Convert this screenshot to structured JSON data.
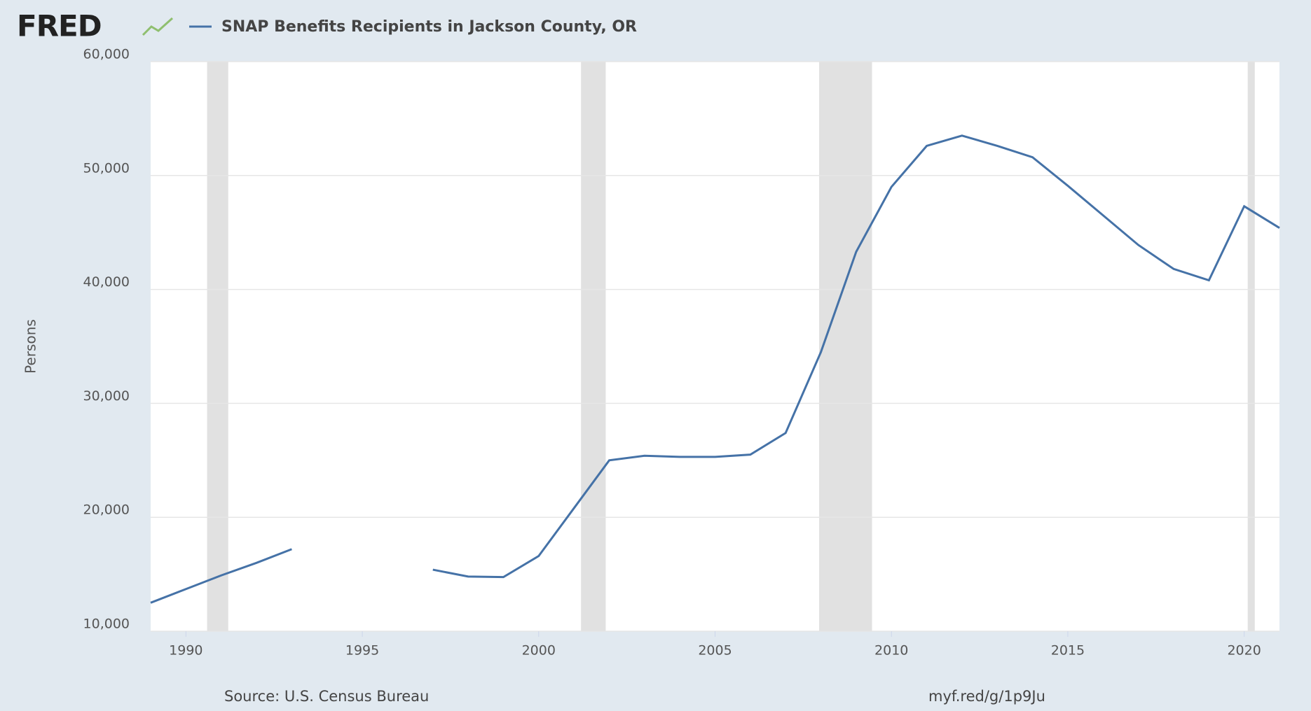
{
  "logo": "FRED",
  "chart_data": {
    "type": "line",
    "title": "SNAP Benefits Recipients in Jackson County, OR",
    "y_label": "Persons",
    "source": "Source: U.S. Census Bureau",
    "url": "myf.red/g/1p9Ju",
    "x": [
      1989,
      1990,
      1991,
      1992,
      1993,
      1994,
      1995,
      1996,
      1997,
      1998,
      1999,
      2000,
      2001,
      2002,
      2003,
      2004,
      2005,
      2006,
      2007,
      2008,
      2009,
      2010,
      2011,
      2012,
      2013,
      2014,
      2015,
      2016,
      2017,
      2018,
      2019,
      2020,
      2021
    ],
    "series": [
      {
        "name": "SNAP Benefits Recipients in Jackson County, OR",
        "color": "#4572a7",
        "values": [
          12500,
          13700,
          14900,
          16000,
          17200,
          null,
          null,
          null,
          15400,
          14800,
          14750,
          16600,
          20800,
          25000,
          25400,
          25300,
          25300,
          25500,
          27400,
          34500,
          43300,
          49000,
          52600,
          53500,
          52600,
          51600,
          49100,
          46500,
          43900,
          41800,
          40800,
          47300,
          45400
        ]
      }
    ],
    "recessions": [
      [
        1990.6,
        1991.2
      ],
      [
        2001.2,
        2001.9
      ],
      [
        2007.95,
        2009.45
      ],
      [
        2020.1,
        2020.3
      ]
    ],
    "xlim": [
      1989,
      2021
    ],
    "xticks": [
      1990,
      1995,
      2000,
      2005,
      2010,
      2015,
      2020
    ],
    "ylim": [
      10000,
      60000
    ],
    "yticks": [
      {
        "value": 10000,
        "label": "10,000"
      },
      {
        "value": 20000,
        "label": "20,000"
      },
      {
        "value": 30000,
        "label": "30,000"
      },
      {
        "value": 40000,
        "label": "40,000"
      },
      {
        "value": 50000,
        "label": "50,000"
      },
      {
        "value": 60000,
        "label": "60,000"
      }
    ],
    "grid": true
  }
}
